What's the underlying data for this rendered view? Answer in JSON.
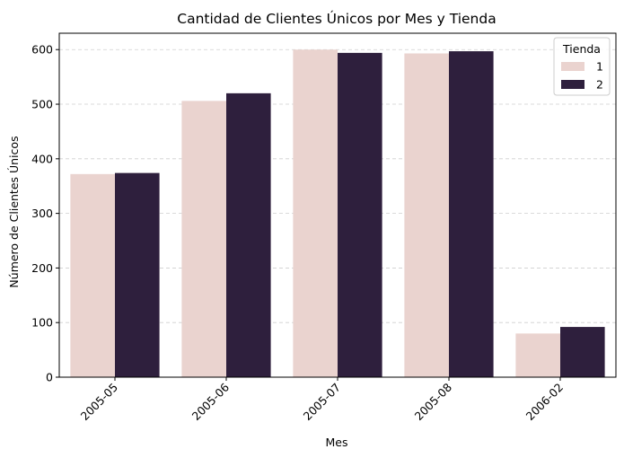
{
  "chart_data": {
    "type": "bar",
    "title": "Cantidad de Clientes Únicos por Mes y Tienda",
    "xlabel": "Mes",
    "ylabel": "Número de Clientes Únicos",
    "categories": [
      "2005-05",
      "2005-06",
      "2005-07",
      "2005-08",
      "2006-02"
    ],
    "series": [
      {
        "name": "1",
        "color": "#ead3cf",
        "values": [
          372,
          506,
          600,
          593,
          80
        ]
      },
      {
        "name": "2",
        "color": "#2e1f3d",
        "values": [
          374,
          520,
          594,
          597,
          92
        ]
      }
    ],
    "ylim": [
      0,
      630
    ],
    "yticks": [
      0,
      100,
      200,
      300,
      400,
      500,
      600
    ],
    "grid": "y",
    "legend": {
      "title": "Tienda",
      "position": "top-right"
    }
  }
}
